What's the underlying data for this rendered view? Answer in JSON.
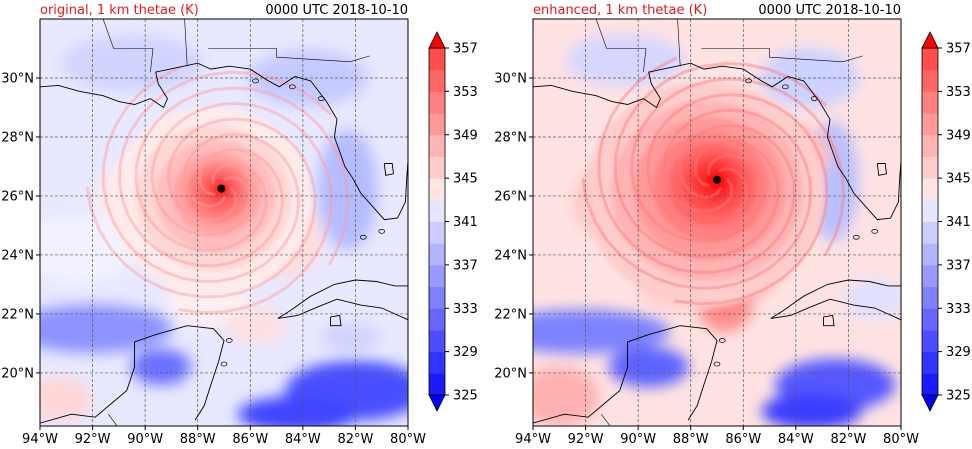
{
  "chart_data": [
    {
      "type": "heatmap",
      "title": "original, 1 km thetae (K)",
      "title_color": "#e41a1c",
      "time_label": "0000 UTC 2018-10-10",
      "xlim": [
        -94,
        -80
      ],
      "ylim": [
        18.2,
        32
      ],
      "x_ticks": [
        "94°W",
        "92°W",
        "90°W",
        "88°W",
        "86°W",
        "84°W",
        "82°W",
        "80°W"
      ],
      "y_ticks": [
        "20°N",
        "22°N",
        "24°N",
        "26°N",
        "28°N",
        "30°N"
      ],
      "x_tick_values": [
        -94,
        -92,
        -90,
        -88,
        -86,
        -84,
        -82,
        -80
      ],
      "y_tick_values": [
        20,
        22,
        24,
        26,
        28,
        30
      ],
      "grid": true,
      "hurricane_center": {
        "lon": -87.1,
        "lat": 26.25
      },
      "colorbar": {
        "levels": [
          325,
          327,
          329,
          331,
          333,
          335,
          337,
          339,
          341,
          343,
          345,
          347,
          349,
          351,
          353,
          355,
          357
        ],
        "tick_labels": [
          "325",
          "329",
          "333",
          "337",
          "341",
          "345",
          "349",
          "353",
          "357"
        ],
        "extend": "both"
      }
    },
    {
      "type": "heatmap",
      "title": "enhanced, 1 km thetae (K)",
      "title_color": "#e41a1c",
      "time_label": "0000 UTC 2018-10-10",
      "xlim": [
        -94,
        -80
      ],
      "ylim": [
        18.2,
        32
      ],
      "x_ticks": [
        "94°W",
        "92°W",
        "90°W",
        "88°W",
        "86°W",
        "84°W",
        "82°W",
        "80°W"
      ],
      "y_ticks": [
        "20°N",
        "22°N",
        "24°N",
        "26°N",
        "28°N",
        "30°N"
      ],
      "x_tick_values": [
        -94,
        -92,
        -90,
        -88,
        -86,
        -84,
        -82,
        -80
      ],
      "y_tick_values": [
        20,
        22,
        24,
        26,
        28,
        30
      ],
      "grid": true,
      "hurricane_center": {
        "lon": -87.0,
        "lat": 26.55
      },
      "colorbar": {
        "levels": [
          325,
          327,
          329,
          331,
          333,
          335,
          337,
          339,
          341,
          343,
          345,
          347,
          349,
          351,
          353,
          355,
          357
        ],
        "tick_labels": [
          "325",
          "329",
          "333",
          "337",
          "341",
          "345",
          "349",
          "353",
          "357"
        ],
        "extend": "both"
      }
    }
  ]
}
